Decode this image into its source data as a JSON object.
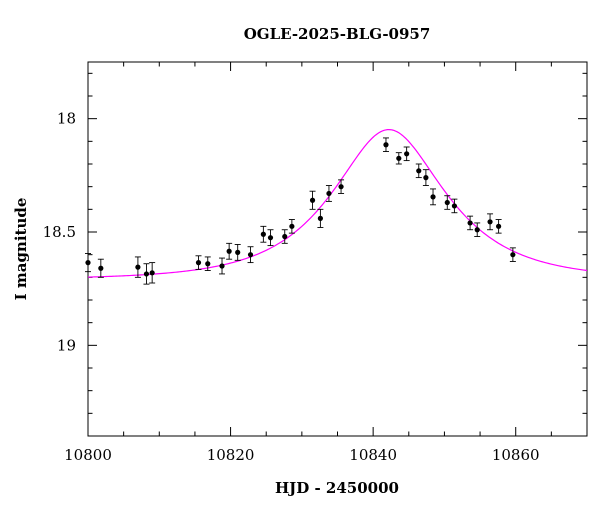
{
  "chart_data": {
    "type": "scatter",
    "title": "OGLE-2025-BLG-0957",
    "xlabel": "HJD - 2450000",
    "ylabel": "I magnitude",
    "xlim": [
      10800,
      10870
    ],
    "ylim": [
      19.4,
      17.75
    ],
    "y_inverted": true,
    "grid": false,
    "x_ticks": [
      10800,
      10820,
      10840,
      10860
    ],
    "x_tick_labels": [
      "10800",
      "10820",
      "10840",
      "10860"
    ],
    "y_ticks": [
      18,
      18.5,
      19
    ],
    "y_tick_labels": [
      "18",
      "18.5",
      "19"
    ],
    "series": [
      {
        "kind": "points-with-errorbars",
        "color": "#000000",
        "points": [
          {
            "x": 10800.0,
            "y": 18.635,
            "err": 0.04
          },
          {
            "x": 10801.8,
            "y": 18.66,
            "err": 0.04
          },
          {
            "x": 10807.0,
            "y": 18.655,
            "err": 0.045
          },
          {
            "x": 10808.2,
            "y": 18.685,
            "err": 0.045
          },
          {
            "x": 10809.0,
            "y": 18.68,
            "err": 0.045
          },
          {
            "x": 10815.5,
            "y": 18.635,
            "err": 0.03
          },
          {
            "x": 10816.8,
            "y": 18.64,
            "err": 0.03
          },
          {
            "x": 10818.8,
            "y": 18.65,
            "err": 0.035
          },
          {
            "x": 10819.8,
            "y": 18.585,
            "err": 0.035
          },
          {
            "x": 10821.0,
            "y": 18.59,
            "err": 0.035
          },
          {
            "x": 10822.8,
            "y": 18.6,
            "err": 0.035
          },
          {
            "x": 10824.6,
            "y": 18.51,
            "err": 0.035
          },
          {
            "x": 10825.6,
            "y": 18.525,
            "err": 0.035
          },
          {
            "x": 10827.6,
            "y": 18.52,
            "err": 0.03
          },
          {
            "x": 10828.6,
            "y": 18.475,
            "err": 0.03
          },
          {
            "x": 10831.5,
            "y": 18.36,
            "err": 0.04
          },
          {
            "x": 10832.6,
            "y": 18.44,
            "err": 0.04
          },
          {
            "x": 10833.8,
            "y": 18.33,
            "err": 0.035
          },
          {
            "x": 10835.5,
            "y": 18.3,
            "err": 0.03
          },
          {
            "x": 10841.8,
            "y": 18.115,
            "err": 0.03
          },
          {
            "x": 10843.6,
            "y": 18.175,
            "err": 0.025
          },
          {
            "x": 10844.7,
            "y": 18.155,
            "err": 0.03
          },
          {
            "x": 10846.4,
            "y": 18.23,
            "err": 0.03
          },
          {
            "x": 10847.4,
            "y": 18.26,
            "err": 0.035
          },
          {
            "x": 10848.4,
            "y": 18.345,
            "err": 0.035
          },
          {
            "x": 10850.4,
            "y": 18.37,
            "err": 0.03
          },
          {
            "x": 10851.4,
            "y": 18.385,
            "err": 0.03
          },
          {
            "x": 10853.6,
            "y": 18.46,
            "err": 0.03
          },
          {
            "x": 10854.6,
            "y": 18.49,
            "err": 0.03
          },
          {
            "x": 10856.4,
            "y": 18.455,
            "err": 0.035
          },
          {
            "x": 10857.6,
            "y": 18.475,
            "err": 0.03
          },
          {
            "x": 10859.6,
            "y": 18.6,
            "err": 0.03
          }
        ]
      },
      {
        "kind": "model-curve",
        "color": "#ff00ff",
        "model": "microlensing",
        "params": {
          "t0": 10842.2,
          "tE": 12.5,
          "u0": 0.6,
          "baseline": 18.71,
          "fs": 0.95
        }
      }
    ]
  }
}
